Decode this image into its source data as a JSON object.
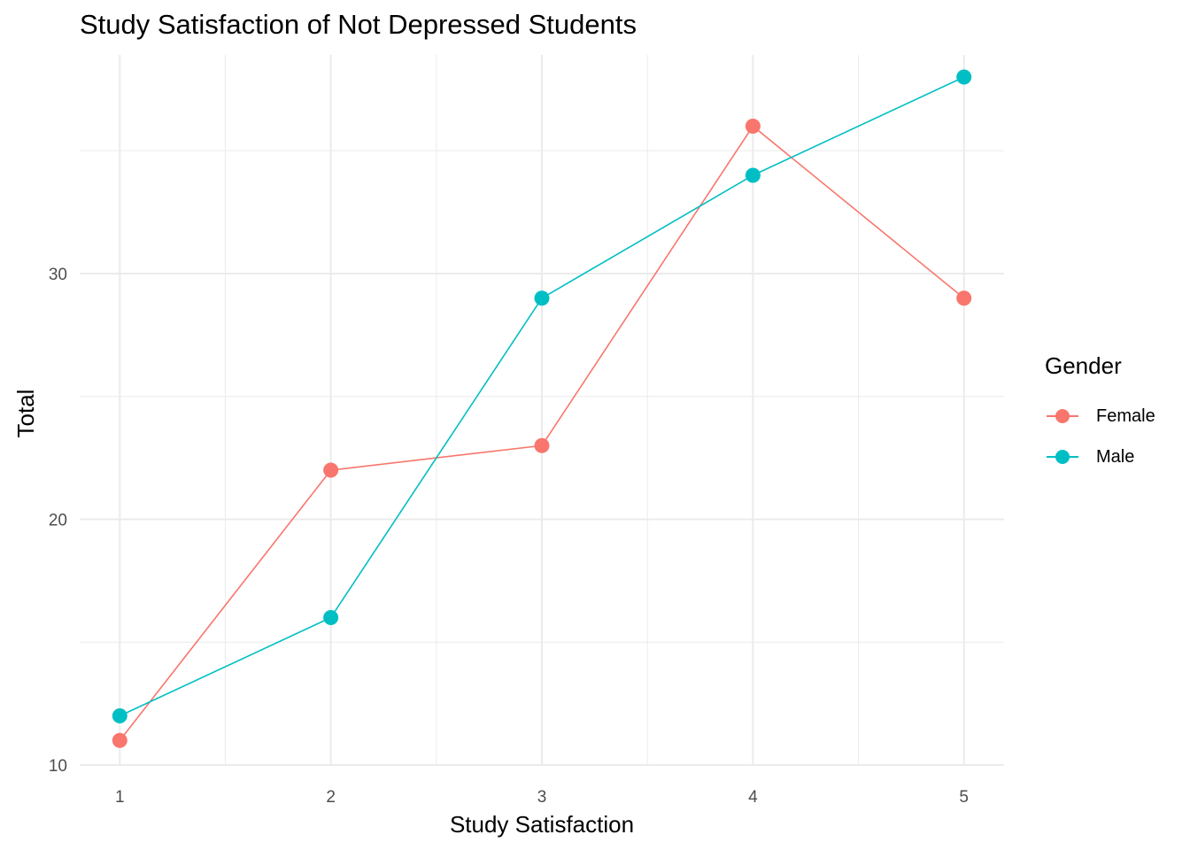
{
  "colors": {
    "female": "#F8766D",
    "male": "#00BFC4",
    "grid": "#EBEBEB",
    "tick": "#4D4D4D"
  },
  "chart_data": {
    "type": "line",
    "title": "Study Satisfaction of Not Depressed Students",
    "xlabel": "Study Satisfaction",
    "ylabel": "Total",
    "x": [
      1,
      2,
      3,
      4,
      5
    ],
    "x_tick_labels": [
      "1",
      "2",
      "3",
      "4",
      "5"
    ],
    "y_tick_labels": [
      "10",
      "20",
      "30"
    ],
    "y_ticks": [
      10,
      20,
      30
    ],
    "y_minor_ticks": [
      15,
      25,
      35
    ],
    "xlim": [
      0.81,
      5.19
    ],
    "ylim": [
      10,
      38.9
    ],
    "grid": true,
    "legend": {
      "title": "Gender",
      "position": "right"
    },
    "series": [
      {
        "name": "Female",
        "values": [
          11,
          22,
          23,
          36,
          29
        ],
        "color": "#F8766D"
      },
      {
        "name": "Male",
        "values": [
          12,
          16,
          29,
          34,
          38
        ],
        "color": "#00BFC4"
      }
    ]
  }
}
